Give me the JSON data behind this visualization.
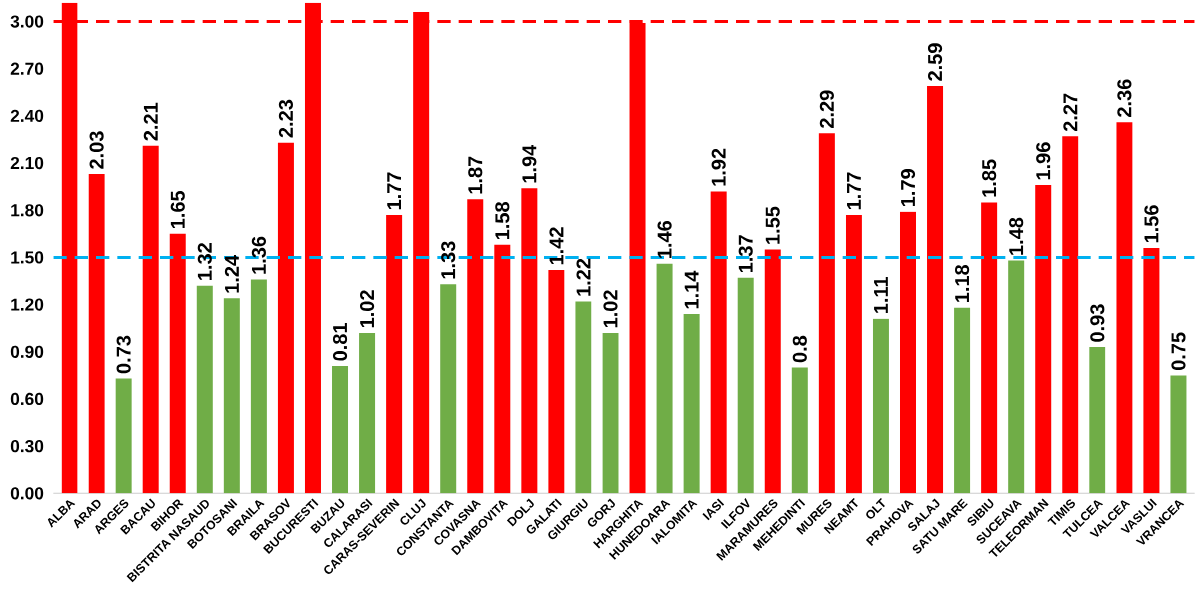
{
  "chart_data": {
    "type": "bar",
    "categories": [
      "ALBA",
      "ARAD",
      "ARGES",
      "BACAU",
      "BIHOR",
      "BISTRITA NASAUD",
      "BOTOSANI",
      "BRAILA",
      "BRASOV",
      "BUCURESTI",
      "BUZAU",
      "CALARASI",
      "CARAS-SEVERIN",
      "CLUJ",
      "CONSTANTA",
      "COVASNA",
      "DAMBOVITA",
      "DOLJ",
      "GALATI",
      "GIURGIU",
      "GORJ",
      "HARGHITA",
      "HUNEDOARA",
      "IALOMITA",
      "IASI",
      "ILFOV",
      "MARAMURES",
      "MEHEDINTI",
      "MURES",
      "NEAMT",
      "OLT",
      "PRAHOVA",
      "SALAJ",
      "SATU MARE",
      "SIBIU",
      "SUCEAVA",
      "TELEORMAN",
      "TIMIS",
      "TULCEA",
      "VALCEA",
      "VASLUI",
      "VRANCEA"
    ],
    "values": [
      3.12,
      2.03,
      0.73,
      2.21,
      1.65,
      1.32,
      1.24,
      1.36,
      2.23,
      3.12,
      0.81,
      1.02,
      1.77,
      3.06,
      1.33,
      1.87,
      1.58,
      1.94,
      1.42,
      1.22,
      1.02,
      2.99,
      1.46,
      1.14,
      1.92,
      1.37,
      1.55,
      0.8,
      2.29,
      1.77,
      1.11,
      1.79,
      2.59,
      1.18,
      1.85,
      1.48,
      1.96,
      2.27,
      0.93,
      2.36,
      1.56,
      0.75
    ],
    "value_labels": [
      null,
      "2.03",
      "0.73",
      "2.21",
      "1.65",
      "1.32",
      "1.24",
      "1.36",
      "2.23",
      null,
      "0.81",
      "1.02",
      "1.77",
      null,
      "1.33",
      "1.87",
      "1.58",
      "1.94",
      "1.42",
      "1.22",
      "1.02",
      null,
      "1.46",
      "1.14",
      "1.92",
      "1.37",
      "1.55",
      "0.8",
      "2.29",
      "1.77",
      "1.11",
      "1.79",
      "2.59",
      "1.18",
      "1.85",
      "1.48",
      "1.96",
      "2.27",
      "0.93",
      "2.36",
      "1.56",
      "0.75"
    ],
    "colors": [
      "#ff0000",
      "#ff0000",
      "#70ad47",
      "#ff0000",
      "#ff0000",
      "#70ad47",
      "#70ad47",
      "#70ad47",
      "#ff0000",
      "#ff0000",
      "#70ad47",
      "#70ad47",
      "#ff0000",
      "#ff0000",
      "#70ad47",
      "#ff0000",
      "#ff0000",
      "#ff0000",
      "#ff0000",
      "#70ad47",
      "#70ad47",
      "#ff0000",
      "#70ad47",
      "#70ad47",
      "#ff0000",
      "#70ad47",
      "#ff0000",
      "#70ad47",
      "#ff0000",
      "#ff0000",
      "#70ad47",
      "#ff0000",
      "#ff0000",
      "#70ad47",
      "#ff0000",
      "#70ad47",
      "#ff0000",
      "#ff0000",
      "#70ad47",
      "#ff0000",
      "#ff0000",
      "#70ad47"
    ],
    "ylim": [
      0,
      3.12
    ],
    "yticks": [
      {
        "value": 0,
        "label": "0.00"
      },
      {
        "value": 0.3,
        "label": "0.30"
      },
      {
        "value": 0.6,
        "label": "0.60"
      },
      {
        "value": 0.9,
        "label": "0.90"
      },
      {
        "value": 1.2,
        "label": "1.20"
      },
      {
        "value": 1.5,
        "label": "1.50"
      },
      {
        "value": 1.8,
        "label": "1.80"
      },
      {
        "value": 2.1,
        "label": "2.10"
      },
      {
        "value": 2.4,
        "label": "2.40"
      },
      {
        "value": 2.7,
        "label": "2.70"
      },
      {
        "value": 3.0,
        "label": "3.00"
      }
    ],
    "ref_lines": [
      {
        "axis": "y",
        "value": 3.0,
        "color": "#ff0000",
        "line_style": "dashed"
      },
      {
        "axis": "y",
        "value": 1.5,
        "color": "#00b0f0",
        "line_style": "dashed"
      }
    ],
    "grid": false
  }
}
